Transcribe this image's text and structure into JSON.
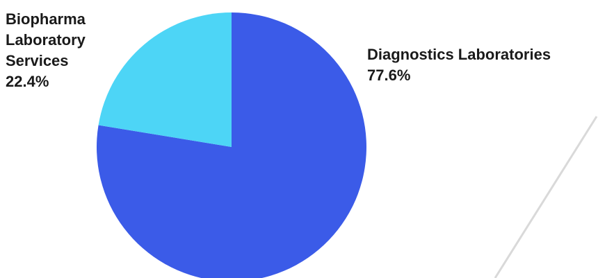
{
  "chart_data": {
    "type": "pie",
    "categories": [
      "Diagnostics Laboratories",
      "Biopharma Laboratory Services"
    ],
    "values": [
      77.6,
      22.4
    ],
    "unit": "%",
    "colors": [
      "#3B5BE8",
      "#4DD5F6"
    ],
    "labels": [
      {
        "lines": [
          "Diagnostics Laboratories",
          "77.6%"
        ]
      },
      {
        "lines": [
          "Biopharma",
          "Laboratory",
          "Services",
          "22.4%"
        ]
      }
    ],
    "start_angle": "12 o'clock",
    "direction": "clockwise",
    "legend": "none"
  }
}
